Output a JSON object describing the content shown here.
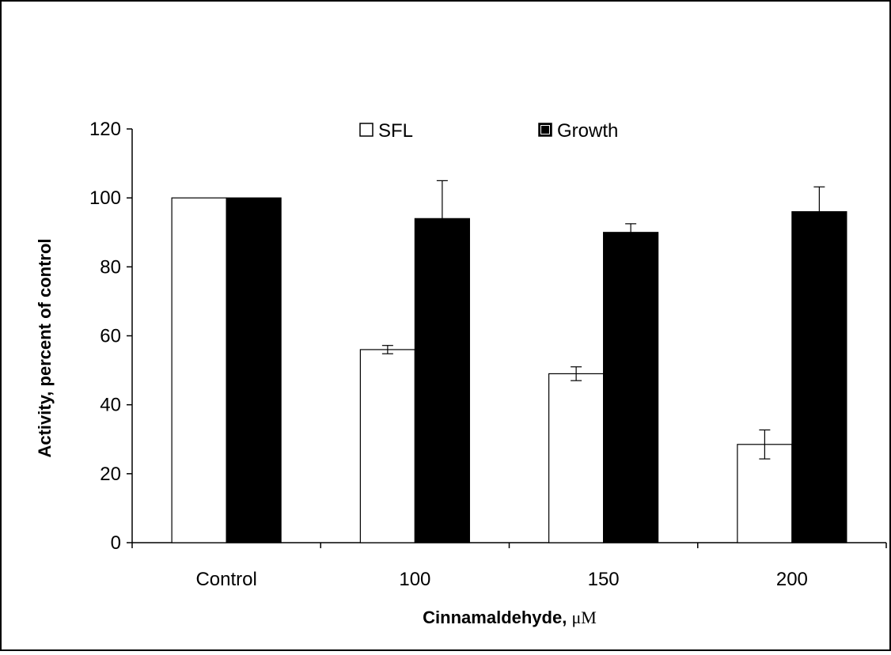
{
  "chart_data": {
    "type": "bar",
    "categories": [
      "Control",
      "100",
      "150",
      "200"
    ],
    "series": [
      {
        "name": "SFL",
        "values": [
          100,
          56,
          49,
          28.5
        ],
        "errors": [
          0,
          1.2,
          2.0,
          4.2
        ],
        "color": "#ffffff"
      },
      {
        "name": "Growth",
        "values": [
          100,
          94,
          90,
          96
        ],
        "errors": [
          0,
          11,
          2.5,
          7.2
        ],
        "color": "#000000"
      }
    ],
    "xlabel": "Cinnamaldehyde,",
    "xlabel_unit": "μM",
    "ylabel": "Activity, percent of control",
    "ylim": [
      0,
      120
    ],
    "yticks": [
      "0",
      "20",
      "40",
      "60",
      "80",
      "100",
      "120"
    ],
    "legend_position": "top-center",
    "grid": false
  }
}
